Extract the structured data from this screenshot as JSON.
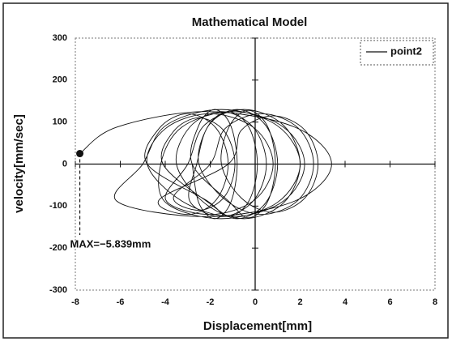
{
  "chart_data": {
    "type": "line",
    "title": "Mathematical Model",
    "x_label": "Displacement[mm]",
    "y_label": "velocity[mm/sec]",
    "xlim": [
      -8,
      8
    ],
    "xticks": [
      -8,
      -6,
      -4,
      -2,
      0,
      2,
      4,
      6,
      8
    ],
    "ylim": [
      -300,
      300
    ],
    "yticks": [
      -300,
      -200,
      -100,
      0,
      100,
      200,
      300
    ],
    "legend": "upper right",
    "annotation": {
      "text": "MAX=−5.839mm",
      "x": -7.8,
      "y": 25
    },
    "series": [
      {
        "name": "point2",
        "color": "#111111",
        "x": [
          -7.8,
          -6.16,
          -2.2,
          1.76,
          3.4,
          1.76,
          -2.2,
          -6.16,
          -5,
          -3.97,
          -1.5,
          0.97,
          2,
          0.97,
          -1.5,
          -3.97,
          -4.2,
          -3.26,
          -1,
          1.26,
          2.2,
          1.26,
          -1,
          -3.26,
          -4.8,
          -3.98,
          -2,
          -0.02,
          0.8,
          -0.02,
          -2,
          -3.98,
          -3,
          -2.27,
          -0.5,
          1.27,
          2,
          1.27,
          -0.5,
          -2.27,
          -3.5,
          -2.91,
          -1.5,
          -0.09,
          0.5,
          -0.09,
          -1.5,
          -2.91,
          -2.6,
          -2.07,
          -0.8,
          0.47,
          1,
          0.47,
          -0.8,
          -2.07,
          -4.1,
          -3.63,
          -2.5,
          -1.37,
          -0.9,
          -1.37,
          -2.5,
          -3.63,
          -2,
          -1.33,
          0.3,
          1.93,
          2.6,
          1.93,
          0.3,
          -1.33,
          -2.5,
          -2.12,
          -1.2,
          -0.28,
          0.1,
          -0.28,
          -1.2,
          -2.12,
          -4.8,
          -4.27,
          -3,
          -1.73,
          -1.2,
          -1.73,
          -3,
          -4.27,
          -1.2,
          -0.61,
          0.8,
          2.21,
          2.8,
          2.21,
          0.8,
          -0.61,
          -1.5,
          -1.15,
          -0.3,
          0.55,
          0.9,
          0.55,
          -0.3,
          -1.15,
          -2.8,
          -2.51,
          -1.8,
          -1.09,
          -0.8,
          -1.09,
          -1.8,
          -2.51,
          -2.8
        ],
        "values": [
          25,
          88,
          125,
          88,
          0,
          -88,
          -125,
          -88,
          0,
          92,
          130,
          92,
          0,
          -92,
          -130,
          -92,
          0,
          88,
          125,
          88,
          0,
          -88,
          -125,
          -88,
          0,
          85,
          120,
          85,
          0,
          -85,
          -120,
          -85,
          0,
          92,
          130,
          92,
          0,
          -92,
          -130,
          -92,
          0,
          88,
          125,
          88,
          0,
          -88,
          -125,
          -88,
          0,
          92,
          130,
          92,
          0,
          -92,
          -130,
          -92,
          0,
          78,
          110,
          78,
          0,
          -78,
          -110,
          -78,
          0,
          85,
          120,
          85,
          0,
          -85,
          -120,
          -85,
          0,
          88,
          125,
          88,
          0,
          -88,
          -125,
          -88,
          0,
          85,
          120,
          85,
          0,
          -85,
          -120,
          -85,
          0,
          81,
          115,
          81,
          0,
          -81,
          -115,
          -81,
          0,
          90,
          128,
          90,
          0,
          -90,
          -128,
          -90,
          0,
          92,
          130,
          92,
          0,
          -92,
          -130,
          -92,
          0
        ]
      }
    ]
  }
}
